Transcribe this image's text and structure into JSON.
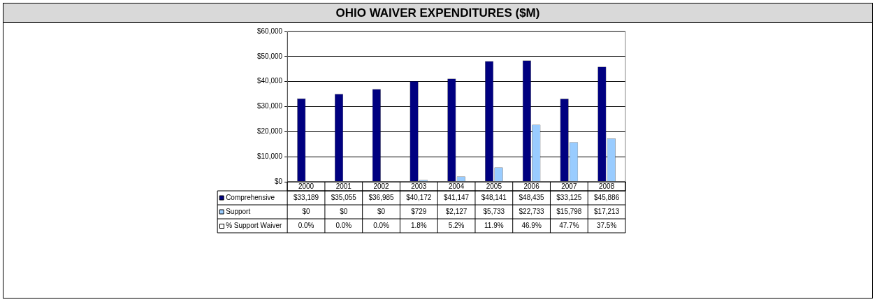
{
  "chart_data": {
    "type": "bar",
    "title": "OHIO WAIVER EXPENDITURES ($M)",
    "categories": [
      "2000",
      "2001",
      "2002",
      "2003",
      "2004",
      "2005",
      "2006",
      "2007",
      "2008"
    ],
    "series": [
      {
        "name": "Comprehensive",
        "color": "#000080",
        "values": [
          33189,
          35055,
          36985,
          40172,
          41147,
          48141,
          48435,
          33125,
          45886
        ],
        "value_labels": [
          "$33,189",
          "$35,055",
          "$36,985",
          "$40,172",
          "$41,147",
          "$48,141",
          "$48,435",
          "$33,125",
          "$45,886"
        ]
      },
      {
        "name": "Support",
        "color": "#99ccff",
        "values": [
          0,
          0,
          0,
          729,
          2127,
          5733,
          22733,
          15798,
          17213
        ],
        "value_labels": [
          "$0",
          "$0",
          "$0",
          "$729",
          "$2,127",
          "$5,733",
          "$22,733",
          "$15,798",
          "$17,213"
        ]
      }
    ],
    "annotations": [
      "% Support Waiver",
      "0.0%",
      "0.0%",
      "0.0%",
      "1.8%",
      "5.2%",
      "11.9%",
      "46.9%",
      "47.7%",
      "37.5%"
    ],
    "legend": "bottom",
    "ylim": [
      0,
      60000
    ],
    "yticks": [
      {
        "value": 0,
        "label": "$0"
      },
      {
        "value": 10000,
        "label": "$10,000"
      },
      {
        "value": 20000,
        "label": "$20,000"
      },
      {
        "value": 30000,
        "label": "$30,000"
      },
      {
        "value": 40000,
        "label": "$40,000"
      },
      {
        "value": 50000,
        "label": "$50,000"
      },
      {
        "value": 60000,
        "label": "$60,000"
      }
    ],
    "grid": "y"
  }
}
